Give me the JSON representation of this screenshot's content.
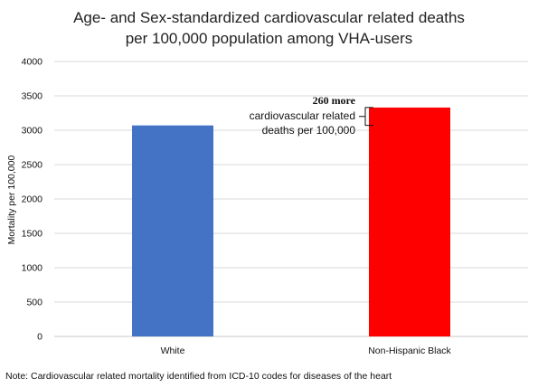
{
  "chart_data": {
    "type": "bar",
    "title": [
      "Age- and Sex-standardized cardiovascular related deaths",
      "per 100,000 population among VHA-users"
    ],
    "xlabel": "",
    "ylabel": "Mortality per 100,000",
    "ylim": [
      0,
      4000
    ],
    "yticks": [
      "0",
      "500",
      "1000",
      "1500",
      "2000",
      "2500",
      "3000",
      "3500",
      "4000"
    ],
    "categories": [
      "White",
      "Non-Hispanic Black"
    ],
    "values": [
      3070,
      3330
    ],
    "colors": [
      "#4472C4",
      "#FF0000"
    ],
    "grid": true,
    "annotation": {
      "bold_line": "260 more",
      "lines": [
        "cardiovascular related",
        "deaths per 100,000"
      ],
      "bracket_from": 3070,
      "bracket_to": 3330
    }
  },
  "footnote": "Note: Cardiovascular related mortality identified from ICD-10 codes for diseases of the heart"
}
